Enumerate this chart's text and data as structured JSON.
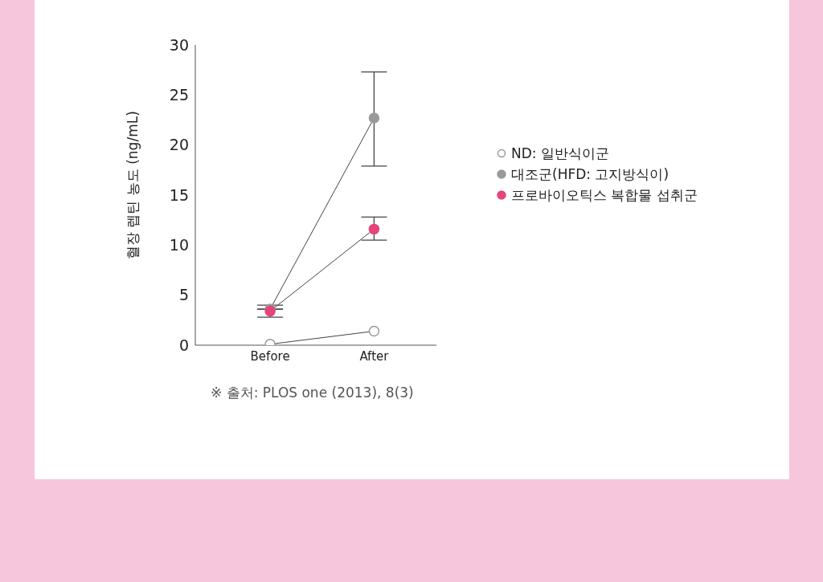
{
  "chart_data": {
    "type": "line",
    "ylabel": "혈장 렙틴 농도 (ng/mL)",
    "categories": [
      "Before",
      "After"
    ],
    "series": [
      {
        "name": "ND: 일반식이군",
        "color": "#999999",
        "values": [
          0.1,
          1.4
        ]
      },
      {
        "name": "대조군(HFD: 고지방식이)",
        "color": "#999999",
        "values": [
          3.6,
          22.7
        ],
        "errors": [
          null,
          [
            17.9,
            27.3
          ]
        ]
      },
      {
        "name": "프로바이오틱스 복합물 섭취군",
        "color": "#e5457a",
        "values": [
          3.4,
          11.6
        ],
        "errors": [
          [
            2.8,
            4.0
          ],
          [
            10.5,
            12.8
          ]
        ]
      }
    ],
    "ylim": [
      0,
      30
    ],
    "yticks": [
      0,
      5,
      10,
      15,
      20,
      25,
      30
    ],
    "grid": false,
    "legend": "right",
    "marker": "circle",
    "annotations": [
      "※ 출처: PLOS one (2013), 8(3)"
    ]
  }
}
